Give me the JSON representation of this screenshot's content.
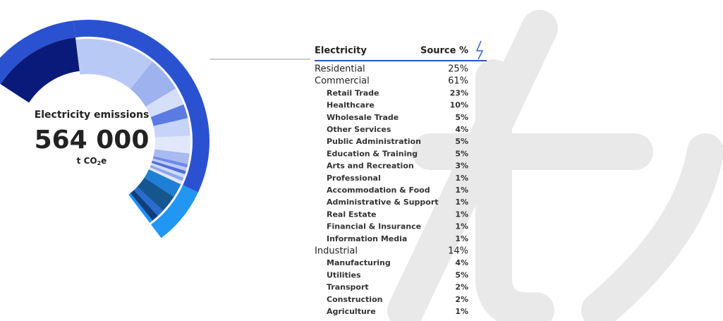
{
  "center": {
    "label": "Electricity emissions",
    "value": "564 000",
    "unit": "t CO",
    "unit_sub": "2",
    "unit_end": "e"
  },
  "table": {
    "header": [
      "Electricity",
      "Source %"
    ],
    "rows": [
      {
        "name": "Residential",
        "value": 25,
        "label": "25%",
        "children": []
      },
      {
        "name": "Commercial",
        "value": 61,
        "label": "61%",
        "children": [
          {
            "name": "Retail Trade",
            "value": 23,
            "label": "23%"
          },
          {
            "name": "Healthcare",
            "value": 10,
            "label": "10%"
          },
          {
            "name": "Wholesale Trade",
            "value": 5,
            "label": "5%"
          },
          {
            "name": "Other Services",
            "value": 4,
            "label": "4%"
          },
          {
            "name": "Public Administration",
            "value": 5,
            "label": "5%"
          },
          {
            "name": "Education & Training",
            "value": 5,
            "label": "5%"
          },
          {
            "name": "Arts and Recreation",
            "value": 3,
            "label": "3%"
          },
          {
            "name": "Professional",
            "value": 1,
            "label": "1%"
          },
          {
            "name": "Accommodation & Food",
            "value": 1,
            "label": "1%"
          },
          {
            "name": "Administrative & Support",
            "value": 1,
            "label": "1%"
          },
          {
            "name": "Real Estate",
            "value": 1,
            "label": "1%"
          },
          {
            "name": "Financial & Insurance",
            "value": 1,
            "label": "1%"
          },
          {
            "name": "Information Media",
            "value": 1,
            "label": "1%"
          }
        ]
      },
      {
        "name": "Industrial",
        "value": 14,
        "label": "14%",
        "children": [
          {
            "name": "Manufacturing",
            "value": 4,
            "label": "4%"
          },
          {
            "name": "Utilities",
            "value": 5,
            "label": "5%"
          },
          {
            "name": "Transport",
            "value": 2,
            "label": "2%"
          },
          {
            "name": "Construction",
            "value": 2,
            "label": "2%"
          },
          {
            "name": "Agriculture",
            "value": 1,
            "label": "1%"
          }
        ]
      }
    ]
  }
}
